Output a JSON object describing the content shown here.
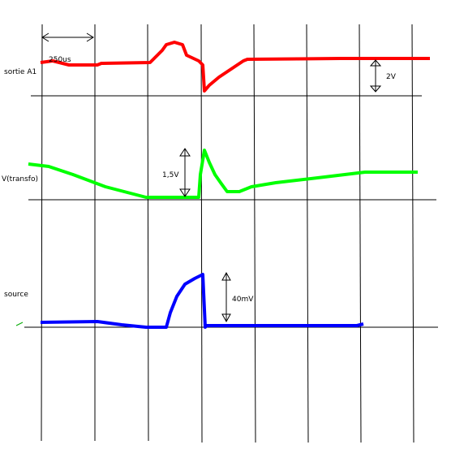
{
  "labels": {
    "time_scale": "250us",
    "trace1": "sortie A1",
    "trace1_scale": "2V",
    "trace2": "V(transfo)",
    "trace2_scale": "1,5V",
    "trace3": "source",
    "trace3_scale": "40mV"
  }
}
